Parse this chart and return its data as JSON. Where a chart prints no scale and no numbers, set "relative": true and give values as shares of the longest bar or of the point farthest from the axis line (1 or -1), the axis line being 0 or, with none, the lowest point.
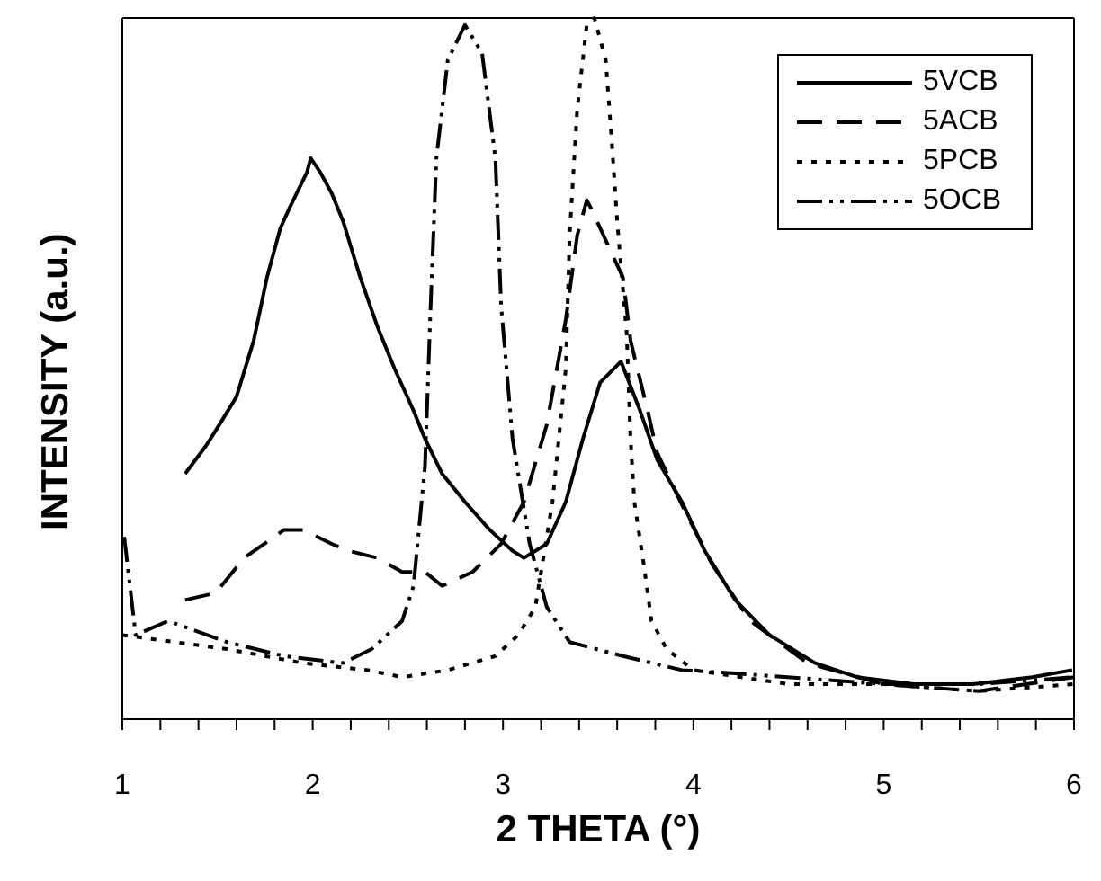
{
  "chart_data": {
    "type": "line",
    "relative": true,
    "xlabel": "2  THETA  (°)",
    "ylabel": "INTENSITY  (a.u.)",
    "xlim": [
      1,
      6
    ],
    "xticks": [
      1,
      {
        "value": 1.2,
        "label": null
      },
      {
        "value": 1.4,
        "label": null
      },
      {
        "value": 1.6,
        "label": null
      },
      {
        "value": 1.8,
        "label": null
      },
      2,
      {
        "value": 2.2,
        "label": null
      },
      {
        "value": 2.4,
        "label": null
      },
      {
        "value": 2.6,
        "label": null
      },
      {
        "value": 2.8,
        "label": null
      },
      3,
      {
        "value": 3.2,
        "label": null
      },
      {
        "value": 3.4,
        "label": null
      },
      {
        "value": 3.6,
        "label": null
      },
      {
        "value": 3.8,
        "label": null
      },
      4,
      {
        "value": 4.2,
        "label": null
      },
      {
        "value": 4.4,
        "label": null
      },
      {
        "value": 4.6,
        "label": null
      },
      {
        "value": 4.8,
        "label": null
      },
      5,
      {
        "value": 5.2,
        "label": null
      },
      {
        "value": 5.4,
        "label": null
      },
      {
        "value": 5.6,
        "label": null
      },
      {
        "value": 5.8,
        "label": null
      },
      6
    ],
    "grid": false,
    "legend": "top right",
    "marker": "none",
    "series": [
      {
        "name": "5VCB",
        "color": "#000000",
        "line_style": "solid",
        "x": [
          1.33,
          1.44,
          1.51,
          1.6,
          1.69,
          1.76,
          1.83,
          1.88,
          1.97,
          1.99,
          2.04,
          2.1,
          2.16,
          2.25,
          2.34,
          2.43,
          2.53,
          2.59,
          2.68,
          2.8,
          2.93,
          3.05,
          3.11,
          3.23,
          3.33,
          3.42,
          3.51,
          3.62,
          3.72,
          3.81,
          3.94,
          4.06,
          4.22,
          4.4,
          4.64,
          4.86,
          5.16,
          5.47,
          5.78,
          5.99
        ],
        "values": [
          0.35,
          0.39,
          0.42,
          0.46,
          0.54,
          0.63,
          0.7,
          0.73,
          0.78,
          0.8,
          0.78,
          0.75,
          0.71,
          0.63,
          0.56,
          0.5,
          0.44,
          0.4,
          0.35,
          0.31,
          0.27,
          0.24,
          0.23,
          0.25,
          0.31,
          0.4,
          0.48,
          0.51,
          0.44,
          0.37,
          0.31,
          0.24,
          0.17,
          0.12,
          0.08,
          0.06,
          0.05,
          0.05,
          0.06,
          0.07
        ]
      },
      {
        "name": "5ACB",
        "color": "#000000",
        "line_style": "dashed",
        "x": [
          1.33,
          1.49,
          1.64,
          1.85,
          1.95,
          2.1,
          2.19,
          2.34,
          2.47,
          2.59,
          2.68,
          2.84,
          2.99,
          3.11,
          3.23,
          3.33,
          3.39,
          3.44,
          3.46,
          3.63,
          3.67,
          3.76,
          3.81,
          3.95,
          4.1,
          4.3,
          4.6,
          5.0,
          5.5,
          6.0
        ],
        "values": [
          0.17,
          0.18,
          0.23,
          0.27,
          0.27,
          0.25,
          0.24,
          0.23,
          0.21,
          0.21,
          0.19,
          0.21,
          0.25,
          0.31,
          0.42,
          0.57,
          0.69,
          0.74,
          0.73,
          0.63,
          0.54,
          0.44,
          0.38,
          0.3,
          0.22,
          0.14,
          0.08,
          0.05,
          0.04,
          0.06
        ]
      },
      {
        "name": "5PCB",
        "color": "#000000",
        "line_style": "dotted",
        "x": [
          1.0,
          1.55,
          1.95,
          2.29,
          2.47,
          2.71,
          2.96,
          3.08,
          3.17,
          3.26,
          3.33,
          3.35,
          3.39,
          3.44,
          3.48,
          3.54,
          3.57,
          3.6,
          3.65,
          3.67,
          3.69,
          3.74,
          3.78,
          3.86,
          4.0,
          4.5,
          5.0,
          5.5,
          6.0
        ],
        "values": [
          0.12,
          0.1,
          0.08,
          0.07,
          0.06,
          0.07,
          0.09,
          0.12,
          0.16,
          0.31,
          0.5,
          0.69,
          0.87,
          0.99,
          1,
          0.94,
          0.83,
          0.71,
          0.55,
          0.4,
          0.31,
          0.22,
          0.14,
          0.1,
          0.07,
          0.05,
          0.05,
          0.04,
          0.05
        ]
      },
      {
        "name": "5OCB",
        "color": "#000000",
        "line_style": "dashdotdot",
        "x": [
          1.01,
          1.07,
          1.24,
          1.55,
          1.85,
          2.16,
          2.31,
          2.47,
          2.53,
          2.59,
          2.62,
          2.65,
          2.71,
          2.8,
          2.89,
          2.96,
          2.99,
          3.05,
          3.14,
          3.23,
          3.35,
          3.63,
          3.94,
          4.24,
          5.0,
          5.5,
          6.0
        ],
        "values": [
          0.26,
          0.12,
          0.14,
          0.11,
          0.09,
          0.08,
          0.1,
          0.14,
          0.19,
          0.36,
          0.59,
          0.8,
          0.94,
          0.99,
          0.95,
          0.8,
          0.59,
          0.4,
          0.25,
          0.16,
          0.11,
          0.09,
          0.07,
          0.065,
          0.05,
          0.05,
          0.06
        ]
      }
    ]
  }
}
